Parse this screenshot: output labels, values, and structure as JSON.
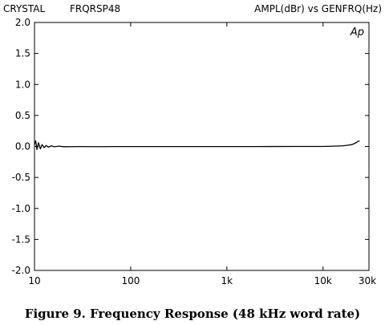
{
  "header": {
    "left1": "CRYSTAL",
    "left2": "FRQRSP48",
    "right": "AMPL(dBr)   vs   GENFRQ(Hz)"
  },
  "badge": "Ap",
  "caption": "Figure 9.  Frequency Response (48 kHz word rate)",
  "chart_data": {
    "type": "line",
    "title": "",
    "xlabel": "GENFRQ(Hz)",
    "ylabel": "AMPL(dBr)",
    "x_scale": "log",
    "xlim": [
      10,
      30000
    ],
    "ylim": [
      -2.0,
      2.0
    ],
    "x_ticks": [
      {
        "value": 10,
        "label": "10"
      },
      {
        "value": 100,
        "label": "100"
      },
      {
        "value": 1000,
        "label": "1k"
      },
      {
        "value": 10000,
        "label": "10k"
      },
      {
        "value": 30000,
        "label": "30k"
      }
    ],
    "y_ticks": [
      {
        "value": 2.0,
        "label": "2.0"
      },
      {
        "value": 1.5,
        "label": "1.5"
      },
      {
        "value": 1.0,
        "label": "1.0"
      },
      {
        "value": 0.5,
        "label": "0.5"
      },
      {
        "value": 0.0,
        "label": "0.0"
      },
      {
        "value": -0.5,
        "label": "-0.5"
      },
      {
        "value": -1.0,
        "label": "-1.0"
      },
      {
        "value": -1.5,
        "label": "-1.5"
      },
      {
        "value": -2.0,
        "label": "-2.0"
      }
    ],
    "grid": false,
    "series": [
      {
        "color": "#000000",
        "x": [
          10,
          10.3,
          10.6,
          11,
          11.5,
          12,
          12.6,
          13.2,
          14,
          15,
          16,
          18,
          20,
          25,
          30,
          40,
          50,
          70,
          100,
          200,
          500,
          1000,
          2000,
          3000,
          5000,
          8000,
          10000,
          13000,
          16000,
          18000,
          20000,
          21000,
          22000,
          23000,
          24000
        ],
        "y": [
          0.03,
          0.09,
          -0.05,
          0.06,
          -0.04,
          0.03,
          -0.02,
          0.015,
          -0.01,
          0.01,
          -0.005,
          0.005,
          -0.004,
          -0.003,
          -0.002,
          -0.003,
          -0.003,
          -0.002,
          -0.002,
          -0.002,
          -0.002,
          -0.002,
          -0.002,
          -0.001,
          0.0,
          0.0,
          0.0,
          0.005,
          0.01,
          0.02,
          0.03,
          0.045,
          0.06,
          0.08,
          0.09
        ]
      }
    ]
  }
}
